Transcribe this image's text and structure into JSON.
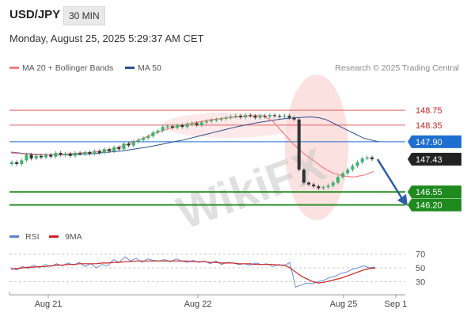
{
  "header": {
    "symbol": "USD/JPY",
    "timeframe": "30 MIN",
    "datetime": "Monday, August 25, 2025 5:29:37 AM CET"
  },
  "legend": {
    "ma20": {
      "label": "MA 20 + Bollinger Bands",
      "color": "#f08080"
    },
    "ma50": {
      "label": "MA 50",
      "color": "#2f4f8f"
    },
    "credit": "Research © 2025 Trading Central"
  },
  "rsi_legend": {
    "rsi": "RSI",
    "ma": "9MA",
    "rsi_color": "#5b7fd4",
    "ma_color": "#cc2222"
  },
  "watermark": "WikiFX",
  "chart_data": [
    {
      "type": "candlestick",
      "title": "USD/JPY",
      "ylim": [
        145.7,
        149.2
      ],
      "levels": [
        {
          "price": 148.75,
          "label": "148.75",
          "kind": "resistance",
          "color": "#e06060"
        },
        {
          "price": 148.35,
          "label": "148.35",
          "kind": "resistance",
          "color": "#e06060"
        },
        {
          "price": 147.9,
          "label": "147.90",
          "kind": "pivot",
          "color": "#1f6fd0"
        },
        {
          "price": 147.43,
          "label": "147.43",
          "kind": "last",
          "color": "#222222"
        },
        {
          "price": 146.55,
          "label": "146.55",
          "kind": "support",
          "color": "#1e8a1e"
        },
        {
          "price": 146.2,
          "label": "146.20",
          "kind": "support",
          "color": "#1e8a1e"
        }
      ],
      "close": [
        147.35,
        147.3,
        147.4,
        147.55,
        147.45,
        147.52,
        147.48,
        147.55,
        147.5,
        147.6,
        147.55,
        147.58,
        147.52,
        147.6,
        147.57,
        147.62,
        147.58,
        147.65,
        147.6,
        147.7,
        147.65,
        147.75,
        147.7,
        147.85,
        147.8,
        147.9,
        147.95,
        148.0,
        148.05,
        148.15,
        148.2,
        148.3,
        148.32,
        148.28,
        148.35,
        148.3,
        148.38,
        148.4,
        148.35,
        148.42,
        148.45,
        148.48,
        148.5,
        148.52,
        148.55,
        148.58,
        148.6,
        148.56,
        148.62,
        148.6,
        148.55,
        148.6,
        148.58,
        148.62,
        148.6,
        148.58,
        148.6,
        148.55,
        148.5,
        147.15,
        146.8,
        146.75,
        146.7,
        146.65,
        146.68,
        146.72,
        146.8,
        146.95,
        147.05,
        147.15,
        147.25,
        147.35,
        147.45,
        147.48,
        147.43
      ],
      "ma50": [
        147.62,
        147.6,
        147.58,
        147.57,
        147.56,
        147.55,
        147.55,
        147.55,
        147.55,
        147.56,
        147.57,
        147.58,
        147.6,
        147.62,
        147.64,
        147.66,
        147.69,
        147.72,
        147.75,
        147.79,
        147.83,
        147.87,
        147.91,
        147.95,
        148.0,
        148.05,
        148.1,
        148.15,
        148.2,
        148.25,
        148.3,
        148.34,
        148.38,
        148.42,
        148.45,
        148.48,
        148.51,
        148.53,
        148.55,
        148.56,
        148.57,
        148.55,
        148.5,
        148.4,
        148.3,
        148.2,
        148.1,
        148.0,
        147.95,
        147.9
      ],
      "ma20": [
        147.6,
        147.58,
        147.56,
        147.55,
        147.55,
        147.56,
        147.58,
        147.6,
        147.62,
        147.65,
        147.7,
        147.78,
        147.88,
        147.98,
        148.1,
        148.2,
        148.28,
        148.35,
        148.4,
        148.45,
        148.5,
        148.53,
        148.56,
        148.58,
        148.6,
        148.6,
        148.45,
        148.15,
        147.85,
        147.6,
        147.4,
        147.2,
        147.05,
        146.98,
        146.95,
        147.0,
        147.1
      ]
    },
    {
      "type": "line",
      "title": "RSI",
      "ylim": [
        20,
        80
      ],
      "yticks": [
        70,
        50,
        30
      ],
      "series": [
        {
          "name": "RSI",
          "values": [
            50,
            47,
            52,
            49,
            54,
            50,
            55,
            52,
            56,
            53,
            57,
            54,
            58,
            52,
            56,
            50,
            55,
            53,
            62,
            58,
            66,
            60,
            64,
            58,
            63,
            61,
            60,
            62,
            59,
            63,
            60,
            58,
            61,
            58,
            60,
            56,
            60,
            55,
            58,
            57,
            55,
            56,
            54,
            57,
            55,
            56,
            52,
            55,
            53,
            58,
            22,
            25,
            28,
            27,
            30,
            32,
            36,
            38,
            42,
            44,
            48,
            50,
            53,
            50,
            51
          ]
        },
        {
          "name": "9MA",
          "values": [
            48,
            49,
            50,
            51,
            51,
            52,
            52,
            53,
            54,
            54,
            55,
            55,
            56,
            56,
            56,
            56,
            57,
            57,
            58,
            58,
            59,
            59,
            60,
            60,
            60,
            60,
            60,
            60,
            60,
            60,
            60,
            60,
            59,
            59,
            59,
            58,
            58,
            57,
            57,
            57,
            56,
            56,
            56,
            55,
            55,
            55,
            55,
            54,
            54,
            50,
            44,
            38,
            34,
            30,
            28,
            29,
            31,
            33,
            35,
            38,
            41,
            44,
            47,
            49,
            50
          ]
        }
      ]
    }
  ],
  "x_axis": {
    "labels": [
      "Aug 21",
      "Aug 22",
      "Aug 25",
      "Sep 1"
    ]
  }
}
